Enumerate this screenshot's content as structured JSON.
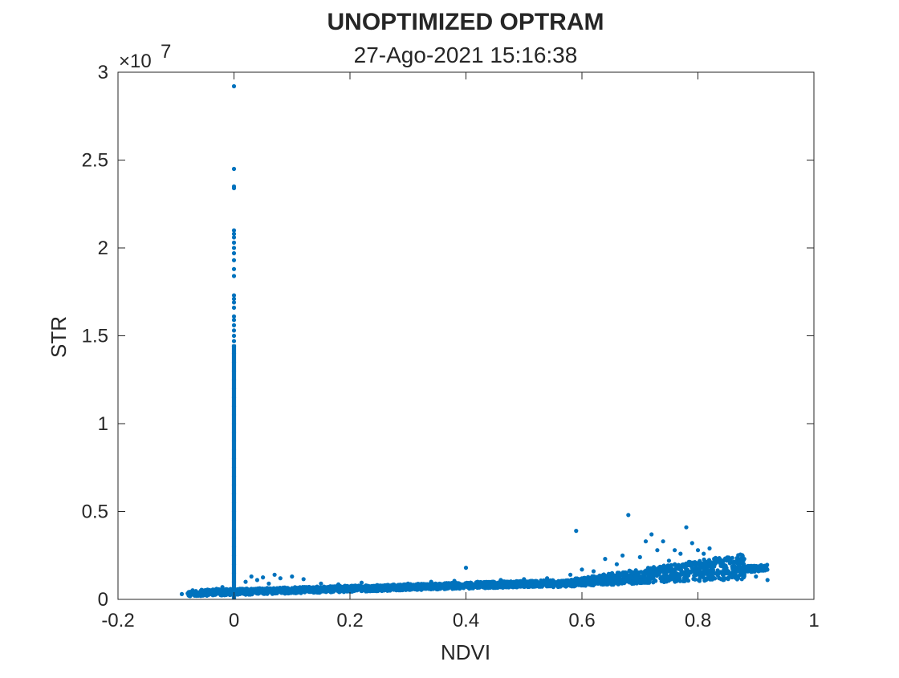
{
  "chart_data": {
    "type": "scatter",
    "title": "UNOPTIMIZED OPTRAM",
    "subtitle": "27-Ago-2021 15:16:38",
    "xlabel": "NDVI",
    "ylabel": "STR",
    "xlim": [
      -0.2,
      1
    ],
    "ylim": [
      0,
      30000000
    ],
    "y_exponent_label": "×10",
    "y_exponent_power": "7",
    "x_ticks": [
      {
        "value": -0.2,
        "label": "-0.2"
      },
      {
        "value": 0,
        "label": "0"
      },
      {
        "value": 0.2,
        "label": "0.2"
      },
      {
        "value": 0.4,
        "label": "0.4"
      },
      {
        "value": 0.6,
        "label": "0.6"
      },
      {
        "value": 0.8,
        "label": "0.8"
      },
      {
        "value": 1,
        "label": "1"
      }
    ],
    "y_ticks": [
      {
        "value": 0,
        "label": "0"
      },
      {
        "value": 5000000,
        "label": "0.5"
      },
      {
        "value": 10000000,
        "label": "1"
      },
      {
        "value": 15000000,
        "label": "1.5"
      },
      {
        "value": 20000000,
        "label": "2"
      },
      {
        "value": 25000000,
        "label": "2.5"
      },
      {
        "value": 30000000,
        "label": "3"
      }
    ],
    "grid": false,
    "legend": "none",
    "marker_color": "#0072BD",
    "series": [
      {
        "points": [
          [
            0,
            29200000
          ],
          [
            0,
            24500000
          ],
          [
            0,
            23500000
          ],
          [
            0,
            23400000
          ],
          [
            0,
            21000000
          ],
          [
            0,
            20800000
          ],
          [
            0,
            20600000
          ],
          [
            0,
            20300000
          ],
          [
            0,
            20000000
          ],
          [
            0,
            19700000
          ],
          [
            0,
            19300000
          ],
          [
            0,
            18800000
          ],
          [
            0,
            18400000
          ],
          [
            0,
            17300000
          ],
          [
            0,
            17100000
          ],
          [
            0,
            16900000
          ],
          [
            0,
            16600000
          ],
          [
            0,
            16100000
          ],
          [
            0,
            15900000
          ],
          [
            0,
            15600000
          ],
          [
            0,
            15300000
          ],
          [
            0,
            15000000
          ],
          [
            0,
            14700000
          ],
          [
            0,
            14400000
          ],
          [
            0,
            14000000
          ],
          [
            0,
            13500000
          ],
          [
            0,
            13000000
          ],
          [
            0,
            12500000
          ],
          [
            0,
            12000000
          ],
          [
            0,
            11500000
          ],
          [
            0,
            11000000
          ],
          [
            0,
            10500000
          ],
          [
            0,
            10000000
          ],
          [
            0,
            9500000
          ],
          [
            0,
            9000000
          ],
          [
            0,
            8500000
          ],
          [
            0,
            8000000
          ],
          [
            0,
            7500000
          ],
          [
            0,
            7000000
          ],
          [
            0,
            6500000
          ],
          [
            0,
            6000000
          ],
          [
            0,
            5500000
          ],
          [
            0,
            5000000
          ],
          [
            0,
            4500000
          ],
          [
            0,
            4000000
          ],
          [
            0,
            3500000
          ],
          [
            0,
            3000000
          ],
          [
            0,
            2500000
          ],
          [
            0,
            2000000
          ],
          [
            0,
            1500000
          ],
          [
            0,
            1000000
          ],
          [
            -0.09,
            300000
          ],
          [
            -0.07,
            400000
          ],
          [
            -0.06,
            350000
          ],
          [
            -0.05,
            500000
          ],
          [
            -0.04,
            450000
          ],
          [
            -0.03,
            600000
          ],
          [
            -0.02,
            700000
          ],
          [
            -0.01,
            550000
          ],
          [
            0.01,
            600000
          ],
          [
            0.02,
            1000000
          ],
          [
            0.03,
            1300000
          ],
          [
            0.04,
            1100000
          ],
          [
            0.05,
            1250000
          ],
          [
            0.06,
            900000
          ],
          [
            0.07,
            1400000
          ],
          [
            0.08,
            1200000
          ],
          [
            0.1,
            1300000
          ],
          [
            0.12,
            1150000
          ],
          [
            0.15,
            900000
          ],
          [
            0.18,
            850000
          ],
          [
            0.22,
            950000
          ],
          [
            0.26,
            800000
          ],
          [
            0.3,
            900000
          ],
          [
            0.34,
            1000000
          ],
          [
            0.38,
            1050000
          ],
          [
            0.4,
            1800000
          ],
          [
            0.42,
            1000000
          ],
          [
            0.46,
            1100000
          ],
          [
            0.5,
            1150000
          ],
          [
            0.54,
            1200000
          ],
          [
            0.58,
            1400000
          ],
          [
            0.59,
            3900000
          ],
          [
            0.6,
            1700000
          ],
          [
            0.62,
            1600000
          ],
          [
            0.64,
            2300000
          ],
          [
            0.66,
            2000000
          ],
          [
            0.67,
            2500000
          ],
          [
            0.68,
            4800000
          ],
          [
            0.7,
            2400000
          ],
          [
            0.71,
            3300000
          ],
          [
            0.72,
            3700000
          ],
          [
            0.73,
            2800000
          ],
          [
            0.74,
            3300000
          ],
          [
            0.75,
            2200000
          ],
          [
            0.76,
            2800000
          ],
          [
            0.77,
            2600000
          ],
          [
            0.78,
            4100000
          ],
          [
            0.79,
            3200000
          ],
          [
            0.8,
            2800000
          ],
          [
            0.81,
            2600000
          ],
          [
            0.82,
            2900000
          ],
          [
            0.83,
            2300000
          ],
          [
            0.84,
            2000000
          ],
          [
            0.86,
            1700000
          ],
          [
            0.88,
            1400000
          ],
          [
            0.9,
            1300000
          ],
          [
            0.92,
            1100000
          ]
        ]
      }
    ]
  }
}
